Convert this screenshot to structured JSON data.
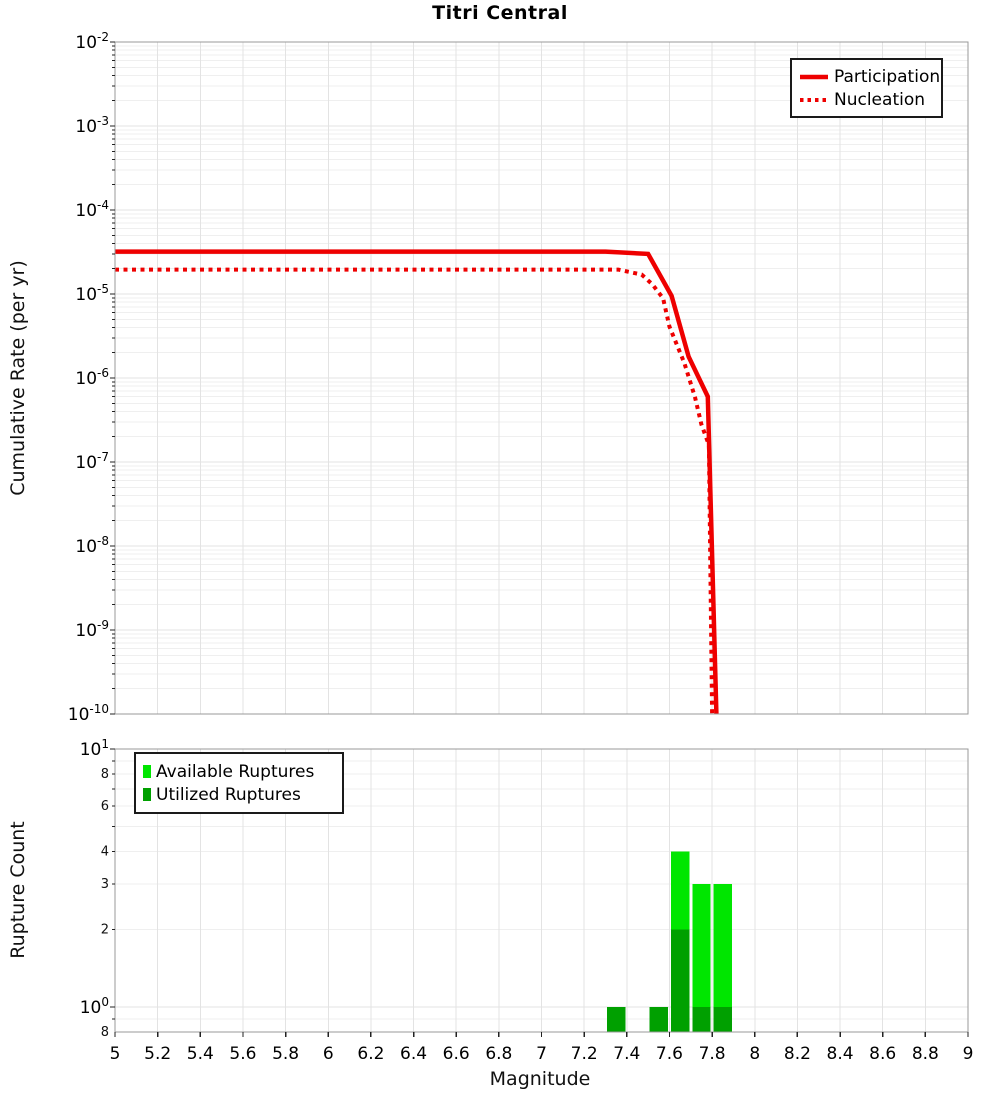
{
  "figure": {
    "title": "Titri Central",
    "background": "#ffffff"
  },
  "colors": {
    "participation_red": "#ee0000",
    "nucleation_red": "#ee0000",
    "available_green": "#00e600",
    "utilized_green": "#00a000",
    "grid_major": "#e3e3e3",
    "grid_minor": "#efefef",
    "spine": "#999999",
    "tick": "#222222"
  },
  "chart_data": [
    {
      "type": "line",
      "title": "Titri Central",
      "xlabel": "",
      "ylabel": "Cumulative Rate (per yr)",
      "x_range": [
        5,
        9
      ],
      "y_scale": "log",
      "y_range": [
        1e-10,
        0.01
      ],
      "grid": true,
      "legend_position": "upper right",
      "y_ticks": {
        "major_exponents": [
          -2,
          -3,
          -4,
          -5,
          -6,
          -7,
          -8,
          -9,
          -10
        ]
      },
      "legend": [
        {
          "label": "Participation",
          "color": "#ee0000",
          "line": "solid"
        },
        {
          "label": "Nucleation",
          "color": "#ee0000",
          "line": "dotted"
        }
      ],
      "series": [
        {
          "name": "Participation",
          "color": "#ee0000",
          "style": "solid",
          "width": 4.5,
          "points": [
            [
              5.0,
              3.2e-05
            ],
            [
              7.3,
              3.2e-05
            ],
            [
              7.5,
              3e-05
            ],
            [
              7.61,
              9.5e-06
            ],
            [
              7.69,
              1.8e-06
            ],
            [
              7.78,
              6e-07
            ],
            [
              7.82,
              1e-10
            ]
          ]
        },
        {
          "name": "Nucleation",
          "color": "#ee0000",
          "style": "dotted",
          "width": 4,
          "points": [
            [
              5.0,
              1.95e-05
            ],
            [
              7.36,
              1.95e-05
            ],
            [
              7.47,
              1.7e-05
            ],
            [
              7.52,
              1.3e-05
            ],
            [
              7.57,
              8.9e-06
            ],
            [
              7.6,
              4.1e-06
            ],
            [
              7.67,
              1.5e-06
            ],
            [
              7.72,
              5.9e-07
            ],
            [
              7.75,
              2.8e-07
            ],
            [
              7.785,
              1.6e-07
            ],
            [
              7.8,
              1e-10
            ]
          ]
        }
      ]
    },
    {
      "type": "bar",
      "title": "",
      "xlabel": "Magnitude",
      "ylabel": "Rupture Count",
      "x_range": [
        5,
        9
      ],
      "y_scale": "log",
      "y_range": [
        0.8,
        10
      ],
      "grid": true,
      "bin_width": 0.1,
      "legend_position": "upper left",
      "x_tick_labels": [
        "5",
        "5.2",
        "5.4",
        "5.6",
        "5.8",
        "6",
        "6.2",
        "6.4",
        "6.6",
        "6.8",
        "7",
        "7.2",
        "7.4",
        "7.6",
        "7.8",
        "8",
        "8.2",
        "8.4",
        "8.6",
        "8.8",
        "9"
      ],
      "y_ticks": {
        "major_exponents": [
          1,
          0
        ],
        "minor_labeled_values": [
          8,
          6,
          4,
          3,
          2,
          0.8
        ]
      },
      "legend": [
        {
          "label": "Available Ruptures",
          "color": "#00e600"
        },
        {
          "label": "Utilized Ruptures",
          "color": "#00a000"
        }
      ],
      "bins": [
        {
          "mag": 7.3,
          "available": 1,
          "utilized": 1
        },
        {
          "mag": 7.5,
          "available": 1,
          "utilized": 1
        },
        {
          "mag": 7.6,
          "available": 4,
          "utilized": 2
        },
        {
          "mag": 7.7,
          "available": 3,
          "utilized": 1
        },
        {
          "mag": 7.8,
          "available": 3,
          "utilized": 1
        }
      ]
    }
  ]
}
